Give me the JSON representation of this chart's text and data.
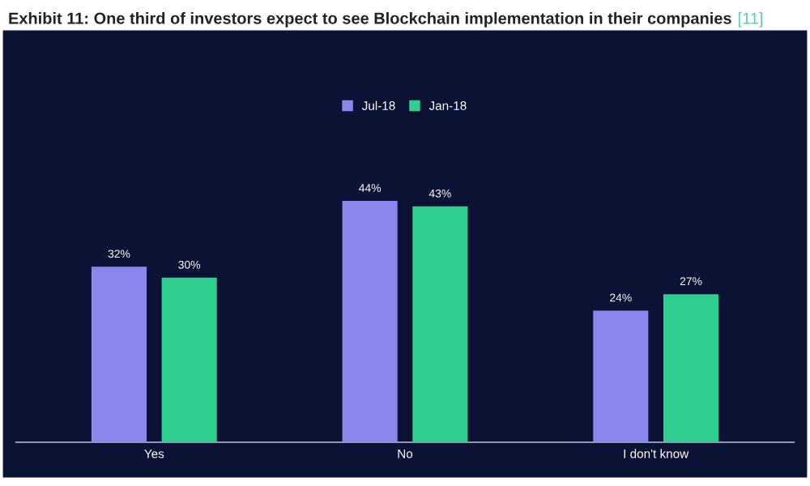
{
  "chart_data": {
    "type": "bar",
    "title": "Exhibit 11: One third of investors expect to see Blockchain implementation in their companies",
    "annotations": [
      "[11]"
    ],
    "categories": [
      "Yes",
      "No",
      "I don't know"
    ],
    "legend": "top",
    "series": [
      {
        "name": "Jul-18",
        "color": "#8a86ee",
        "values": [
          32,
          44,
          24
        ],
        "value_labels": [
          "32%",
          "44%",
          "24%"
        ]
      },
      {
        "name": "Jan-18",
        "color": "#2fcf8f",
        "values": [
          30,
          43,
          27
        ],
        "value_labels": [
          "30%",
          "43%",
          "27%"
        ]
      }
    ]
  }
}
